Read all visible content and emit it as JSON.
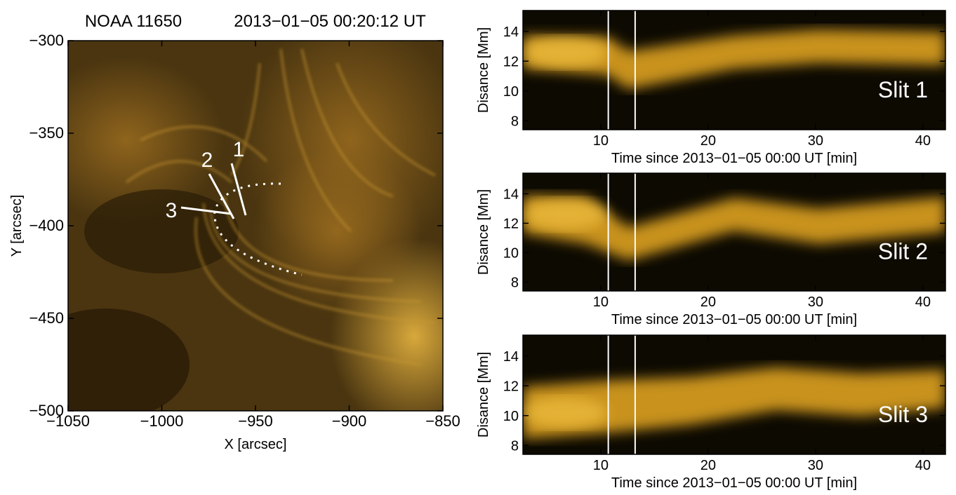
{
  "chart_data": [
    {
      "type": "image",
      "title": [
        "NOAA 11650",
        "2013−01−05 00:20:12 UT"
      ],
      "x_label": "X [arcsec]",
      "y_label": "Y [arcsec]",
      "xlim": [
        -1050,
        -850
      ],
      "ylim": [
        -500,
        -300
      ],
      "xticks": [
        {
          "value": -1050,
          "label": "−1050"
        },
        {
          "value": -1000,
          "label": "−1000"
        },
        {
          "value": -950,
          "label": "−950"
        },
        {
          "value": -900,
          "label": "−900"
        },
        {
          "value": -850,
          "label": "−850"
        }
      ],
      "yticks": [
        {
          "value": -300,
          "label": "−300"
        },
        {
          "value": -350,
          "label": "−350"
        },
        {
          "value": -400,
          "label": "−400"
        },
        {
          "value": -450,
          "label": "−450"
        },
        {
          "value": -500,
          "label": "−500"
        }
      ],
      "annotations": [
        "1",
        "2",
        "3"
      ]
    },
    {
      "type": "timeslice",
      "label": "Slit 1",
      "x_label": "Time since 2013−01−05 00:00 UT [min]",
      "y_label": "Disance [Mm]",
      "xlim": [
        2.75,
        42.1
      ],
      "ylim": [
        7.4,
        15.4
      ],
      "xticks": [
        10,
        20,
        30,
        40
      ],
      "yticks": [
        8,
        10,
        12,
        14
      ],
      "marker_times": [
        10.7,
        13.2
      ]
    },
    {
      "type": "timeslice",
      "label": "Slit 2",
      "x_label": "Time since 2013−01−05 00:00 UT [min]",
      "y_label": "Disance [Mm]",
      "xlim": [
        2.75,
        42.1
      ],
      "ylim": [
        7.4,
        15.4
      ],
      "xticks": [
        10,
        20,
        30,
        40
      ],
      "yticks": [
        8,
        10,
        12,
        14
      ],
      "marker_times": [
        10.7,
        13.2
      ]
    },
    {
      "type": "timeslice",
      "label": "Slit 3",
      "x_label": "Time since 2013−01−05 00:00 UT [min]",
      "y_label": "Disance [Mm]",
      "xlim": [
        2.75,
        42.1
      ],
      "ylim": [
        7.4,
        15.4
      ],
      "xticks": [
        10,
        20,
        30,
        40
      ],
      "yticks": [
        8,
        10,
        12,
        14
      ],
      "marker_times": [
        10.7,
        13.2
      ]
    }
  ]
}
